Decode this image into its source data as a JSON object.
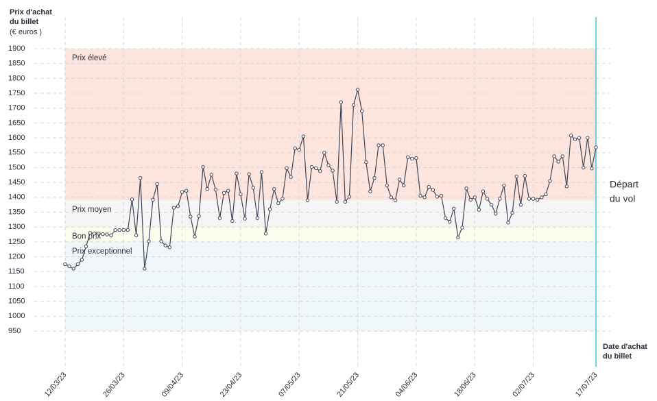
{
  "chart_data": {
    "type": "line",
    "y_title": [
      "Prix d'achat",
      "du billet"
    ],
    "y_unit": "(€ euros )",
    "x_title": [
      "Date d'achat",
      "du billet"
    ],
    "departure_label": [
      "Départ",
      "du vol"
    ],
    "departure_color": "#3cc8e0",
    "ylim": [
      950,
      1900
    ],
    "yticks": [
      950,
      1000,
      1050,
      1100,
      1150,
      1200,
      1250,
      1300,
      1350,
      1400,
      1450,
      1500,
      1550,
      1600,
      1650,
      1700,
      1750,
      1800,
      1850,
      1900
    ],
    "grid": true,
    "bands": [
      {
        "label": "Prix élevé",
        "from": 1390,
        "to": 1900,
        "color": "#fde4dd"
      },
      {
        "label": "Prix moyen",
        "from": 1300,
        "to": 1390,
        "color": "#f5f5f5"
      },
      {
        "label": "Bon prix",
        "from": 1250,
        "to": 1300,
        "color": "#fcfcee"
      },
      {
        "label": "Prix exceptionnel",
        "from": 950,
        "to": 1250,
        "color": "#eff7fb"
      }
    ],
    "categories": [
      "12/03/23",
      null,
      null,
      null,
      null,
      null,
      null,
      null,
      null,
      null,
      null,
      null,
      null,
      null,
      "26/03/23",
      null,
      null,
      null,
      null,
      null,
      null,
      null,
      null,
      null,
      null,
      null,
      null,
      null,
      "09/04/23",
      null,
      null,
      null,
      null,
      null,
      null,
      null,
      null,
      null,
      null,
      null,
      null,
      null,
      "23/04/23",
      null,
      null,
      null,
      null,
      null,
      null,
      null,
      null,
      null,
      null,
      null,
      null,
      null,
      "07/05/23",
      null,
      null,
      null,
      null,
      null,
      null,
      null,
      null,
      null,
      null,
      null,
      null,
      null,
      "21/05/23",
      null,
      null,
      null,
      null,
      null,
      null,
      null,
      null,
      null,
      null,
      null,
      null,
      null,
      "04/06/23",
      null,
      null,
      null,
      null,
      null,
      null,
      null,
      null,
      null,
      null,
      null,
      null,
      null,
      "18/06/23",
      null,
      null,
      null,
      null,
      null,
      null,
      null,
      null,
      null,
      null,
      null,
      null,
      null,
      "02/07/23",
      null,
      null,
      null,
      null,
      null,
      null,
      null,
      null,
      null,
      null,
      null,
      null,
      null,
      null,
      "17/07/23"
    ],
    "series": [
      {
        "color": "#3d4455",
        "values": [
          1175,
          1168,
          1160,
          1175,
          1190,
          1235,
          1280,
          1278,
          1278,
          1276,
          1275,
          1272,
          1290,
          1290,
          1290,
          1290,
          1393,
          1272,
          1465,
          1160,
          1252,
          1392,
          1445,
          1252,
          1238,
          1232,
          1365,
          1370,
          1418,
          1422,
          1335,
          1268,
          1337,
          1502,
          1428,
          1476,
          1426,
          1330,
          1415,
          1422,
          1320,
          1480,
          1410,
          1328,
          1478,
          1432,
          1330,
          1485,
          1278,
          1360,
          1428,
          1380,
          1395,
          1498,
          1468,
          1565,
          1560,
          1605,
          1390,
          1502,
          1498,
          1488,
          1550,
          1508,
          1490,
          1385,
          1720,
          1385,
          1402,
          1710,
          1762,
          1690,
          1518,
          1420,
          1465,
          1575,
          1575,
          1440,
          1400,
          1390,
          1460,
          1440,
          1535,
          1530,
          1532,
          1405,
          1400,
          1435,
          1425,
          1402,
          1405,
          1330,
          1318,
          1362,
          1265,
          1298,
          1430,
          1392,
          1400,
          1358,
          1420,
          1395,
          1375,
          1345,
          1395,
          1440,
          1315,
          1348,
          1470,
          1375,
          1472,
          1395,
          1395,
          1392,
          1400,
          1410,
          1455,
          1538,
          1520,
          1538,
          1437,
          1608,
          1595,
          1600,
          1500,
          1600,
          1497,
          1568
        ]
      }
    ]
  }
}
